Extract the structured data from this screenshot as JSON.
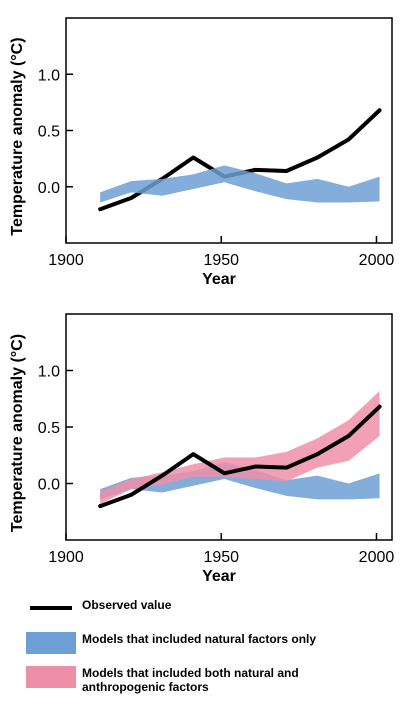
{
  "chart_data": [
    {
      "type": "area",
      "xlabel": "Year",
      "ylabel": "Temperature anomaly (°C)",
      "xlim": [
        1900,
        2005
      ],
      "ylim": [
        -0.5,
        1.5
      ],
      "xticks": [
        1900,
        1950,
        2000
      ],
      "yticks": [
        0.0,
        0.5,
        1.0
      ],
      "ytick_labels": [
        "0.0",
        "0.5",
        "1.0"
      ],
      "series": [
        {
          "name": "Observed value",
          "kind": "line",
          "color": "#000000",
          "x": [
            1911,
            1921,
            1931,
            1941,
            1951,
            1961,
            1971,
            1981,
            1991,
            2001
          ],
          "y": [
            -0.2,
            -0.1,
            0.07,
            0.26,
            0.09,
            0.15,
            0.14,
            0.26,
            0.42,
            0.68
          ]
        },
        {
          "name": "Models that included natural factors only",
          "kind": "band",
          "color": "#6d9fd4",
          "x": [
            1911,
            1921,
            1931,
            1941,
            1951,
            1961,
            1971,
            1981,
            1991,
            2001
          ],
          "lower": [
            -0.14,
            -0.05,
            -0.08,
            -0.02,
            0.04,
            -0.04,
            -0.11,
            -0.14,
            -0.14,
            -0.13
          ],
          "upper": [
            -0.05,
            0.05,
            0.07,
            0.11,
            0.19,
            0.12,
            0.03,
            0.07,
            0.0,
            0.09
          ]
        }
      ]
    },
    {
      "type": "area",
      "xlabel": "Year",
      "ylabel": "Temperature anomaly (°C)",
      "xlim": [
        1900,
        2005
      ],
      "ylim": [
        -0.5,
        1.5
      ],
      "xticks": [
        1900,
        1950,
        2000
      ],
      "yticks": [
        0.0,
        0.5,
        1.0
      ],
      "ytick_labels": [
        "0.0",
        "0.5",
        "1.0"
      ],
      "series": [
        {
          "name": "Models that included natural factors only",
          "kind": "band",
          "color": "#6d9fd4",
          "x": [
            1911,
            1921,
            1931,
            1941,
            1951,
            1961,
            1971,
            1981,
            1991,
            2001
          ],
          "lower": [
            -0.14,
            -0.05,
            -0.08,
            -0.02,
            0.04,
            -0.04,
            -0.11,
            -0.14,
            -0.14,
            -0.13
          ],
          "upper": [
            -0.05,
            0.05,
            0.07,
            0.11,
            0.19,
            0.12,
            0.03,
            0.07,
            0.0,
            0.09
          ]
        },
        {
          "name": "Models that included both natural and anthropogenic factors",
          "kind": "band",
          "color": "#ee8fa8",
          "x": [
            1911,
            1921,
            1931,
            1941,
            1951,
            1961,
            1971,
            1981,
            1991,
            2001
          ],
          "lower": [
            -0.18,
            -0.05,
            -0.01,
            0.06,
            0.06,
            0.04,
            0.02,
            0.14,
            0.2,
            0.42
          ],
          "upper": [
            -0.07,
            0.04,
            0.1,
            0.17,
            0.23,
            0.23,
            0.28,
            0.4,
            0.56,
            0.82
          ]
        },
        {
          "name": "Observed value",
          "kind": "line",
          "color": "#000000",
          "x": [
            1911,
            1921,
            1931,
            1941,
            1951,
            1961,
            1971,
            1981,
            1991,
            2001
          ],
          "y": [
            -0.2,
            -0.1,
            0.07,
            0.26,
            0.09,
            0.15,
            0.14,
            0.26,
            0.42,
            0.68
          ]
        }
      ]
    }
  ],
  "legend": {
    "items": [
      {
        "label": "Observed value",
        "kind": "line",
        "color": "#000000"
      },
      {
        "label": "Models that included natural factors only",
        "kind": "band",
        "color": "#6d9fd4"
      },
      {
        "label": "Models that included both natural and anthropogenic factors",
        "kind": "band",
        "color": "#ee8fa8"
      }
    ]
  }
}
